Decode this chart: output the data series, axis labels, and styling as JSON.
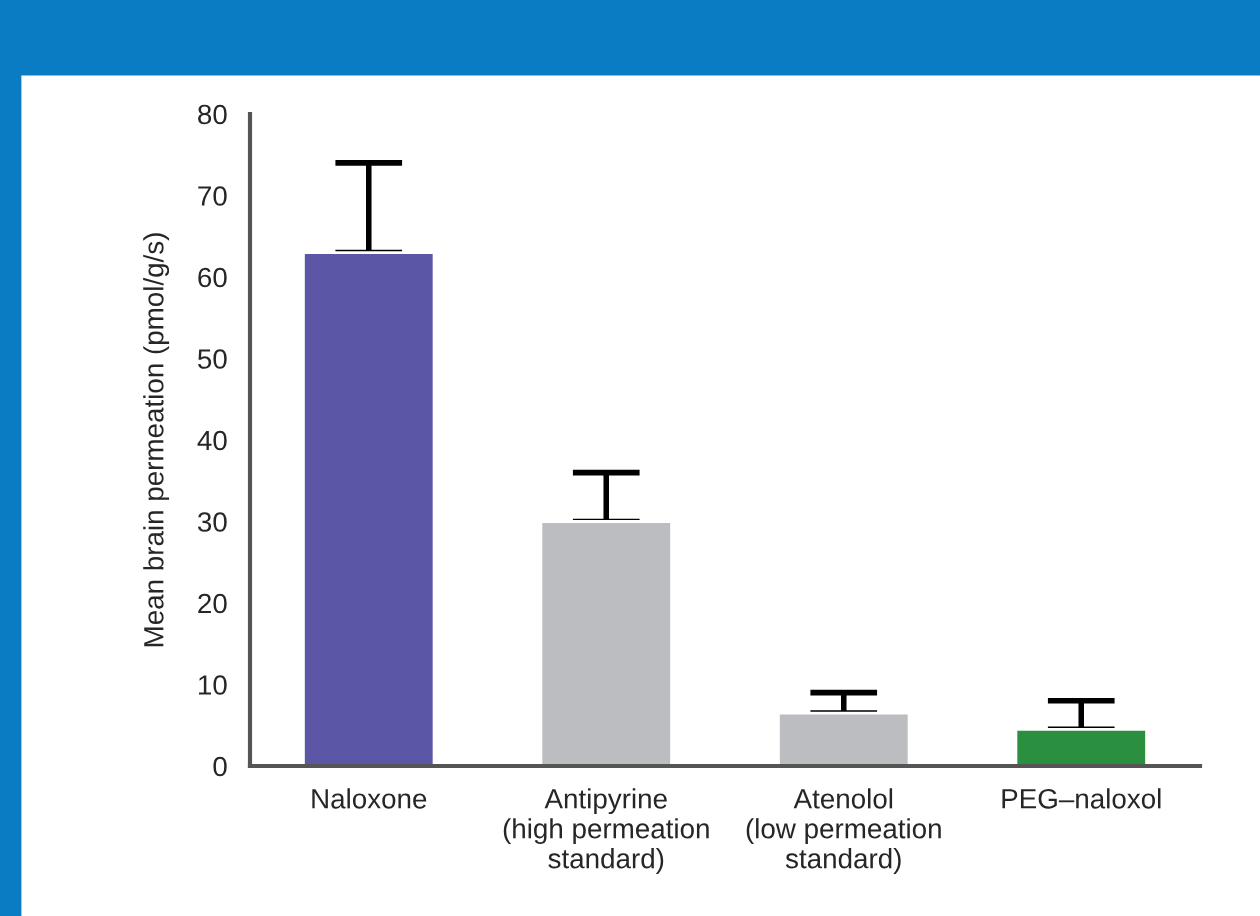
{
  "chart_data": {
    "type": "bar",
    "ylabel": "Mean brain permeation (pmol/g/s)",
    "categories": [
      "Naloxone",
      "Antipyrine\n(high permeation\nstandard)",
      "Atenolol\n(low permeation\nstandard)",
      "PEG–naloxol"
    ],
    "values": [
      63,
      30,
      6.5,
      4.5
    ],
    "errors": [
      [
        63,
        74
      ],
      [
        30,
        36
      ],
      [
        6.5,
        9
      ],
      [
        4.5,
        8
      ]
    ],
    "colors": [
      "#5b57a6",
      "#bcbdc0",
      "#bcbdc0",
      "#2a8f3f"
    ],
    "ylim": [
      0,
      80
    ],
    "yticks": [
      0,
      10,
      20,
      30,
      40,
      50,
      60,
      70,
      80
    ],
    "grid": false,
    "legend": false
  }
}
